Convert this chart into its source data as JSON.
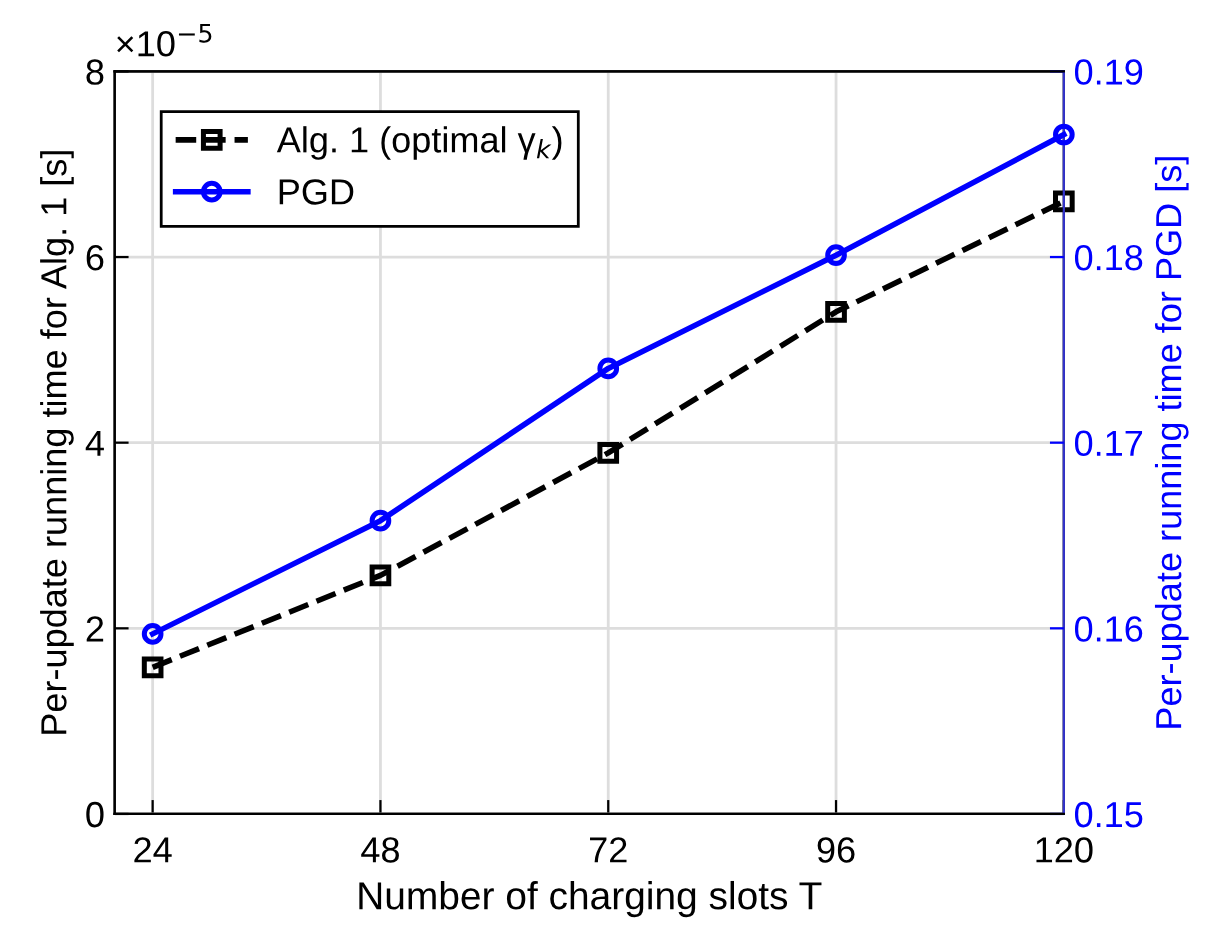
{
  "chart_data": {
    "type": "line",
    "xlabel": "Number of charging slots T",
    "ylabel": "Per-update running time for Alg. 1 [s]",
    "y2label": "Per-update running time for PGD [s]",
    "x": [
      24,
      48,
      72,
      96,
      120
    ],
    "series": [
      {
        "name": "Alg. 1 (optimal γ$_{k}$)",
        "color": "#000000",
        "values": [
          1.58,
          2.57,
          3.89,
          5.41,
          6.6
        ],
        "marker": "square",
        "line_style": "dashed"
      },
      {
        "name": "PGD",
        "color": "#0000ff",
        "values": [
          0.1597,
          0.1658,
          0.174,
          0.1801,
          0.1866
        ],
        "axis": "y2",
        "marker": "circle",
        "line_style": "solid"
      }
    ],
    "xlim": [
      20,
      120
    ],
    "xticks": [
      24,
      48,
      72,
      96,
      120
    ],
    "ylim": [
      0,
      8
    ],
    "yticks": [
      0,
      2,
      4,
      6,
      8
    ],
    "y2lim": [
      0.15,
      0.19
    ],
    "y2ticks": [
      0.15,
      0.16,
      0.17,
      0.18,
      0.19
    ],
    "annotations": [
      "×10$^{−5}$"
    ],
    "grid": true,
    "legend": "top left"
  }
}
